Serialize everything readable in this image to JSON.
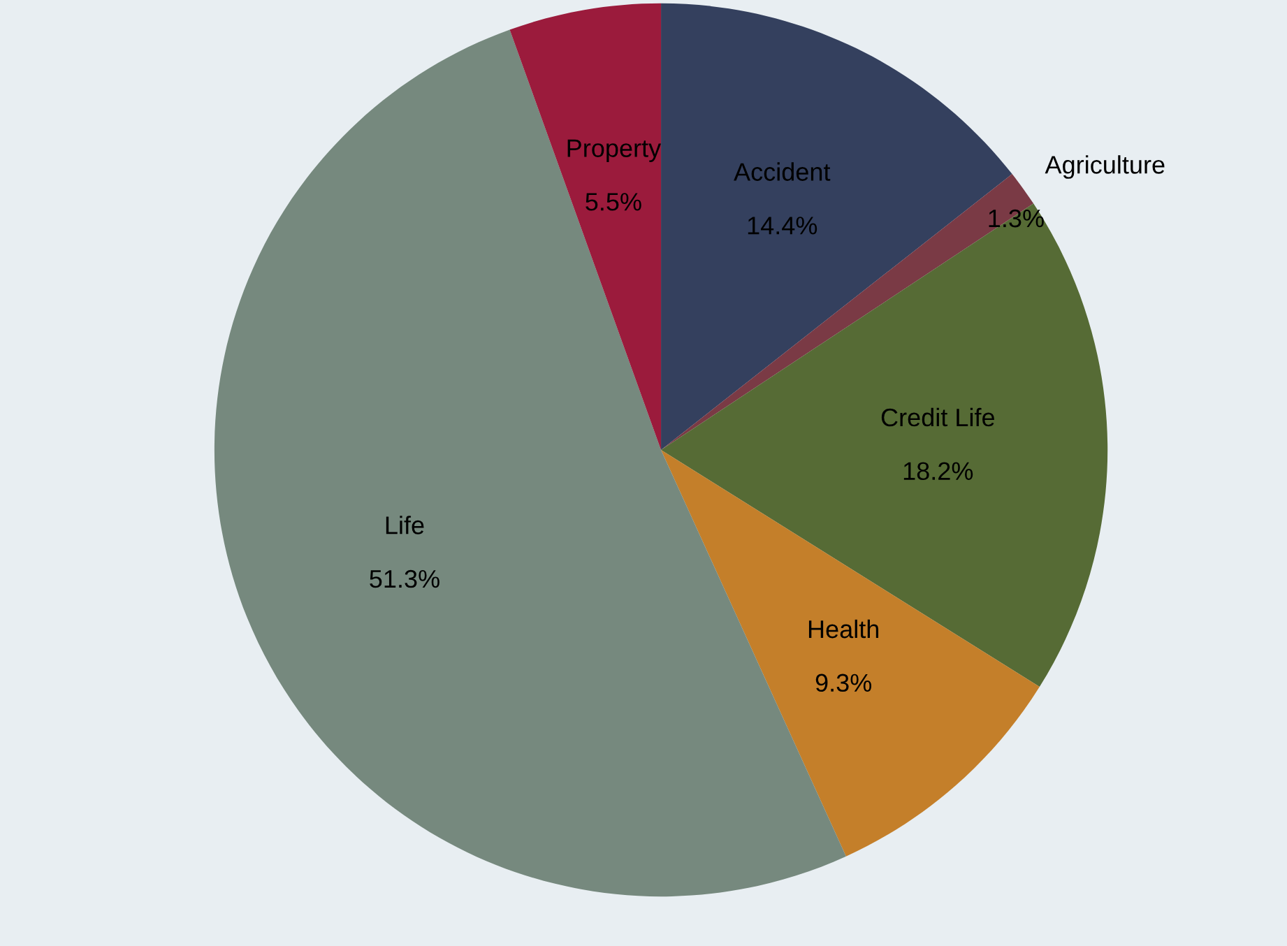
{
  "chart_data": {
    "type": "pie",
    "categories": [
      "Accident",
      "Agriculture",
      "Credit Life",
      "Health",
      "Life",
      "Property"
    ],
    "values": [
      14.4,
      1.3,
      18.2,
      9.3,
      51.3,
      5.5
    ],
    "value_labels": [
      "14.4%",
      "1.3%",
      "18.2%",
      "9.3%",
      "51.3%",
      "5.5%"
    ],
    "colors": [
      "#34405e",
      "#7a3a45",
      "#566b35",
      "#c47f2a",
      "#76897e",
      "#9b1b3c"
    ]
  }
}
